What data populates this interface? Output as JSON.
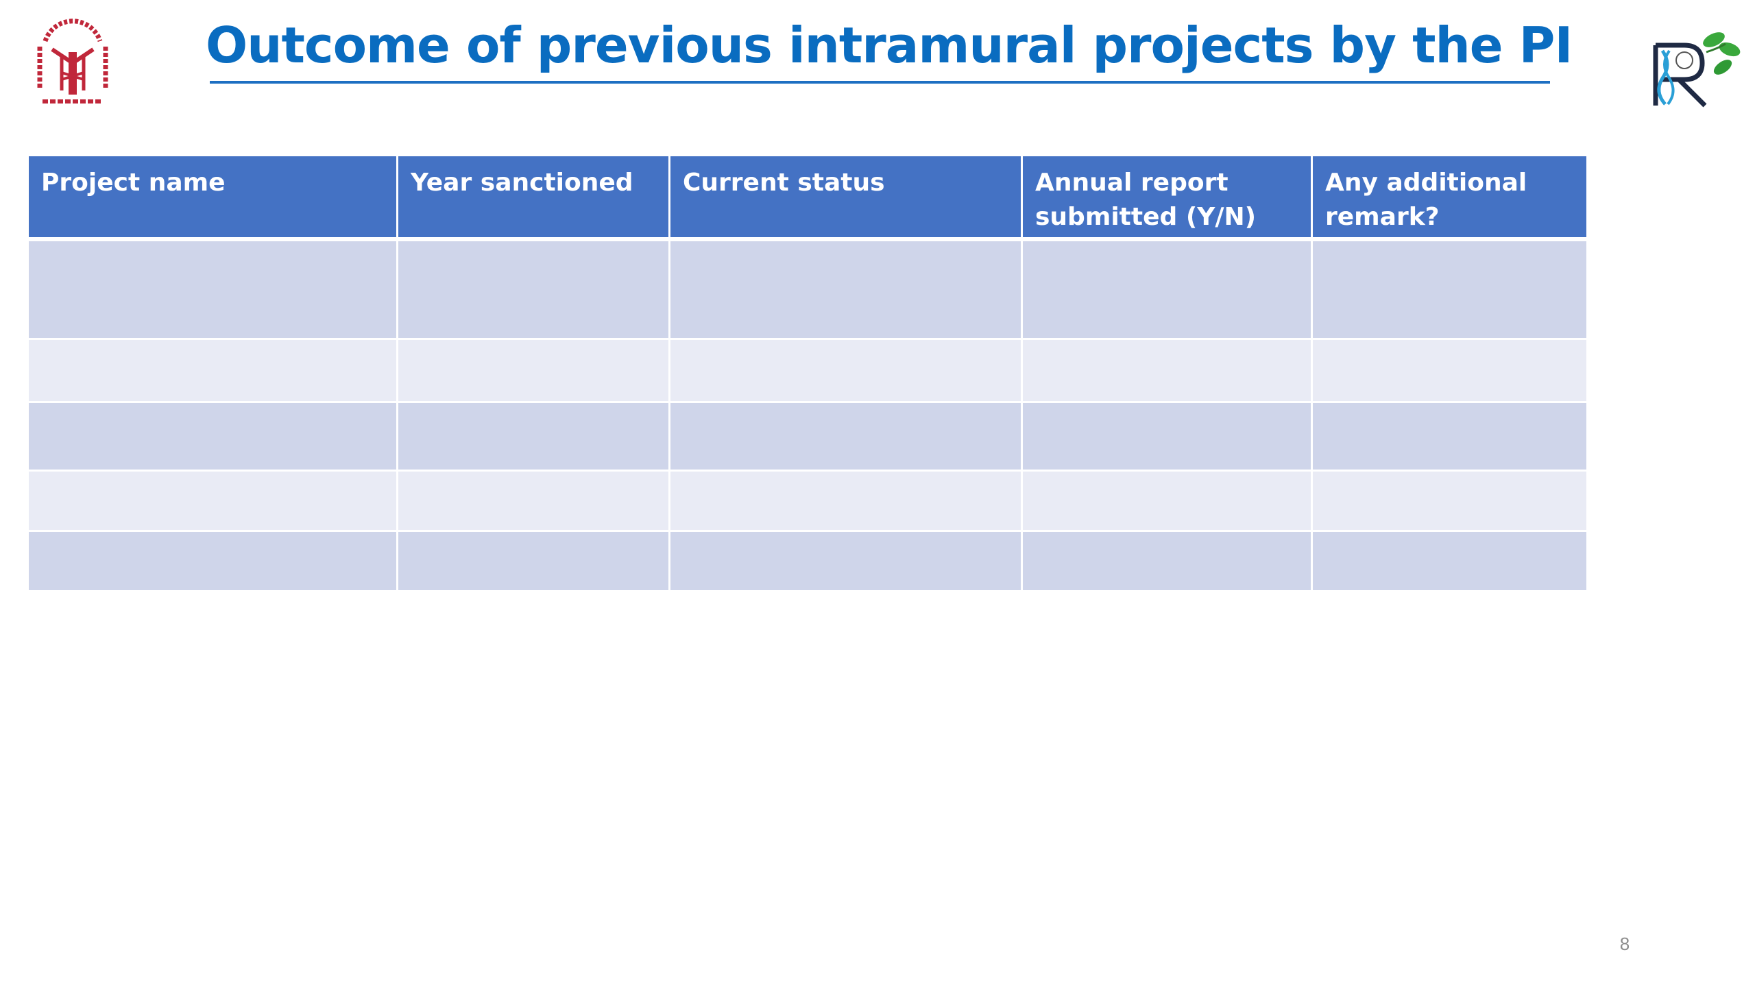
{
  "slide": {
    "title": "Outcome of previous intramural projects by the PI",
    "page_number": "8"
  },
  "table": {
    "headers": [
      "Project name",
      "Year sanctioned",
      "Current status",
      "Annual report submitted (Y/N)",
      "Any additional remark?"
    ],
    "rows": [
      [
        "",
        "",
        "",
        "",
        ""
      ],
      [
        "",
        "",
        "",
        "",
        ""
      ],
      [
        "",
        "",
        "",
        "",
        ""
      ],
      [
        "",
        "",
        "",
        "",
        ""
      ],
      [
        "",
        "",
        "",
        "",
        ""
      ]
    ]
  },
  "colors": {
    "title": "#0a6cc0",
    "header_fill": "#4472c4",
    "row_dark": "#cfd5ea",
    "row_light": "#e9ebf5",
    "seal": "#c0273a"
  },
  "icons": {
    "left_logo": "institution-seal-icon",
    "right_logo": "r-leaf-logo-icon"
  }
}
